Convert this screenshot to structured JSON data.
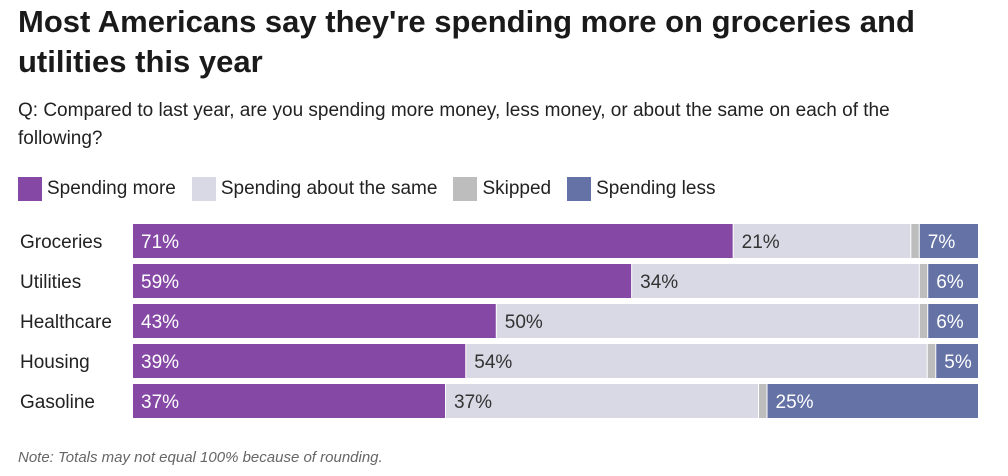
{
  "title": "Most Americans say they're spending more on groceries and utilities this year",
  "subtitle": "Q: Compared to last year, are you spending more money, less money, or about the same on each of the following?",
  "note": "Note: Totals may not equal 100% because of rounding.",
  "legend": [
    {
      "label": "Spending more",
      "color": "#8549a5"
    },
    {
      "label": "Spending about the same",
      "color": "#d9d8e5"
    },
    {
      "label": "Skipped",
      "color": "#bdbdbd"
    },
    {
      "label": "Spending less",
      "color": "#6472a6"
    }
  ],
  "chart_data": {
    "type": "bar",
    "orientation": "horizontal",
    "stacked": true,
    "title": "Most Americans say they're spending more on groceries and utilities this year",
    "categories": [
      "Groceries",
      "Utilities",
      "Healthcare",
      "Housing",
      "Gasoline"
    ],
    "series": [
      {
        "name": "Spending more",
        "color": "#8549a5",
        "label_color": "#ffffff",
        "values": [
          71,
          59,
          43,
          39,
          37
        ],
        "labels": [
          "71%",
          "59%",
          "43%",
          "39%",
          "37%"
        ]
      },
      {
        "name": "Spending about the same",
        "color": "#d9d8e5",
        "label_color": "#333333",
        "values": [
          21,
          34,
          50,
          54,
          37
        ],
        "labels": [
          "21%",
          "34%",
          "50%",
          "54%",
          "37%"
        ]
      },
      {
        "name": "Skipped",
        "color": "#bdbdbd",
        "label_color": "#333333",
        "values": [
          1,
          1,
          1,
          1,
          1
        ],
        "labels": [
          "",
          "",
          "",
          "",
          ""
        ]
      },
      {
        "name": "Spending less",
        "color": "#6472a6",
        "label_color": "#ffffff",
        "values": [
          7,
          6,
          6,
          5,
          25
        ],
        "labels": [
          "7%",
          "6%",
          "6%",
          "5%",
          "25%"
        ]
      }
    ],
    "xlim": [
      0,
      100
    ],
    "xlabel": "",
    "ylabel": ""
  }
}
